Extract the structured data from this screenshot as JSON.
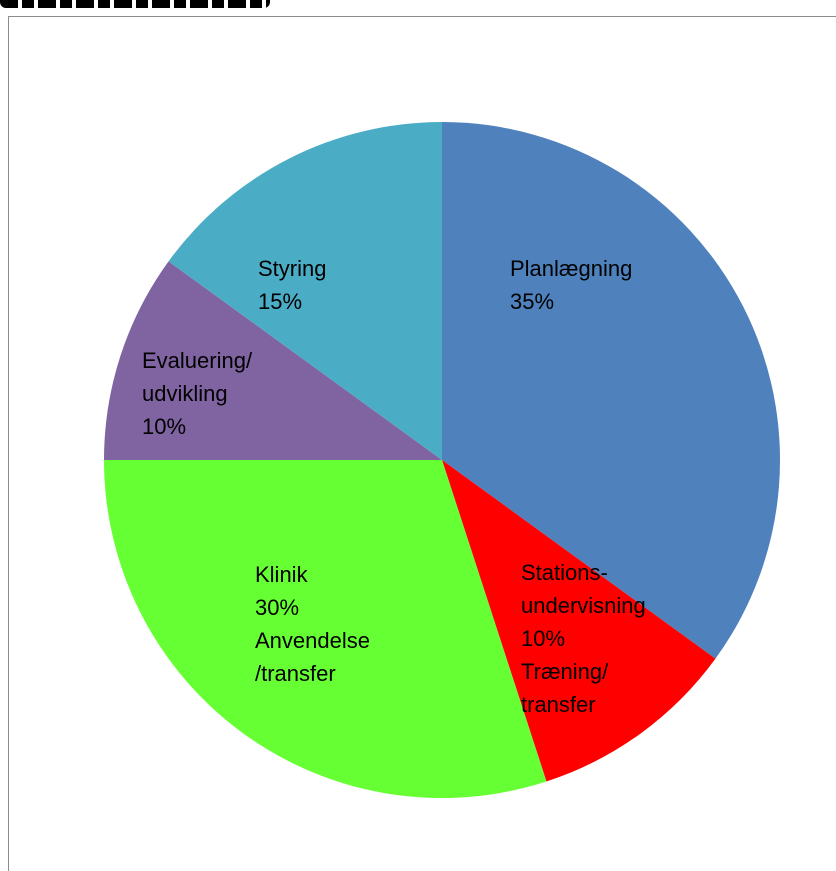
{
  "chart_data": {
    "type": "pie",
    "slices": [
      {
        "label_lines": [
          "Planlægning",
          "35%"
        ],
        "value": 35,
        "color": "#4f81bd"
      },
      {
        "label_lines": [
          "Stations-",
          "undervisning",
          "10%",
          "Træning/",
          "transfer"
        ],
        "value": 10,
        "color": "#ff0000"
      },
      {
        "label_lines": [
          "Klinik",
          "30%",
          "Anvendelse",
          "/transfer"
        ],
        "value": 30,
        "color": "#66ff33"
      },
      {
        "label_lines": [
          "Evaluering/",
          "udvikling",
          "10%"
        ],
        "value": 10,
        "color": "#8064a2"
      },
      {
        "label_lines": [
          "Styring",
          "15%"
        ],
        "value": 15,
        "color": "#4bacc6"
      }
    ],
    "start_angle_deg": 0,
    "direction": "clockwise",
    "legend": "none"
  }
}
